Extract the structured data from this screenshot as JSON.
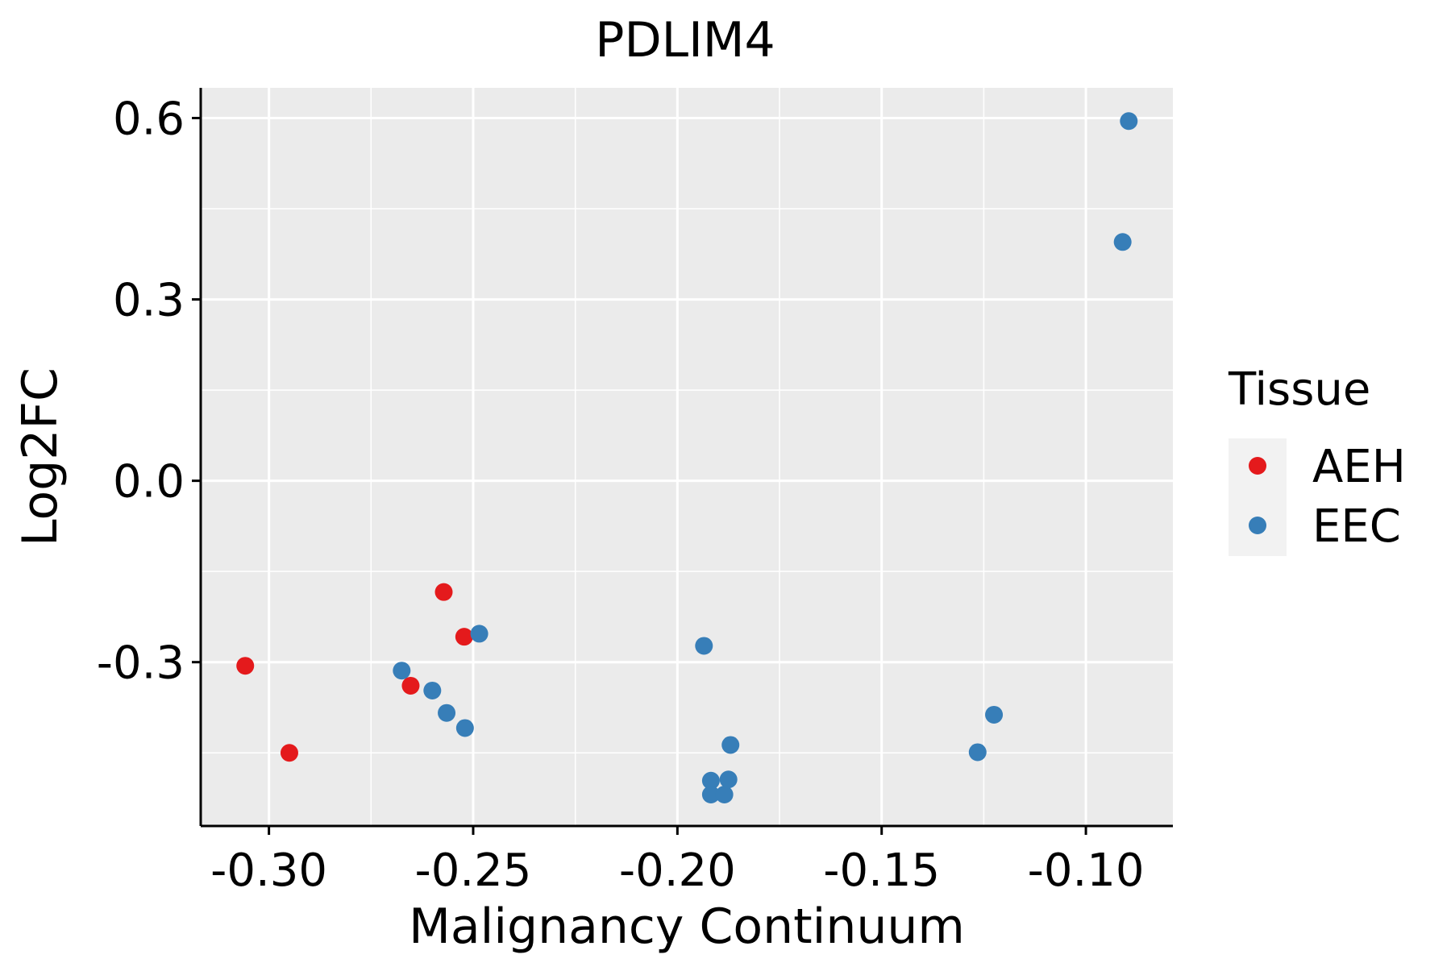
{
  "chart_data": {
    "type": "scatter",
    "title": "PDLIM4",
    "xlabel": "Malignancy Continuum",
    "ylabel": "Log2FC",
    "xlim": [
      -0.3167,
      -0.0787
    ],
    "ylim": [
      -0.571,
      0.65
    ],
    "x_ticks": [
      -0.3,
      -0.25,
      -0.2,
      -0.15,
      -0.1
    ],
    "x_tick_labels": [
      "-0.30",
      "-0.25",
      "-0.20",
      "-0.15",
      "-0.10"
    ],
    "y_ticks": [
      -0.3,
      0.0,
      0.3,
      0.6
    ],
    "y_tick_labels": [
      "-0.3",
      "0.0",
      "0.3",
      "0.6"
    ],
    "x_minor": [
      -0.275,
      -0.225,
      -0.175,
      -0.125
    ],
    "y_minor": [
      -0.45,
      -0.15,
      0.15,
      0.45
    ],
    "grid": true,
    "legend": {
      "title": "Tissue",
      "position": "right"
    },
    "series": [
      {
        "name": "AEH",
        "color": "#E41A1C",
        "points": [
          {
            "x": -0.3058,
            "y": -0.306
          },
          {
            "x": -0.295,
            "y": -0.45
          },
          {
            "x": -0.2653,
            "y": -0.339
          },
          {
            "x": -0.2572,
            "y": -0.184
          },
          {
            "x": -0.2522,
            "y": -0.258
          }
        ]
      },
      {
        "name": "EEC",
        "color": "#377EB8",
        "points": [
          {
            "x": -0.2675,
            "y": -0.314
          },
          {
            "x": -0.26,
            "y": -0.347
          },
          {
            "x": -0.2565,
            "y": -0.384
          },
          {
            "x": -0.252,
            "y": -0.409
          },
          {
            "x": -0.2485,
            "y": -0.253
          },
          {
            "x": -0.1935,
            "y": -0.273
          },
          {
            "x": -0.1918,
            "y": -0.496
          },
          {
            "x": -0.1918,
            "y": -0.519
          },
          {
            "x": -0.1885,
            "y": -0.519
          },
          {
            "x": -0.1875,
            "y": -0.494
          },
          {
            "x": -0.187,
            "y": -0.437
          },
          {
            "x": -0.1265,
            "y": -0.449
          },
          {
            "x": -0.1225,
            "y": -0.387
          },
          {
            "x": -0.091,
            "y": 0.395
          },
          {
            "x": -0.0895,
            "y": 0.595
          }
        ]
      }
    ]
  }
}
